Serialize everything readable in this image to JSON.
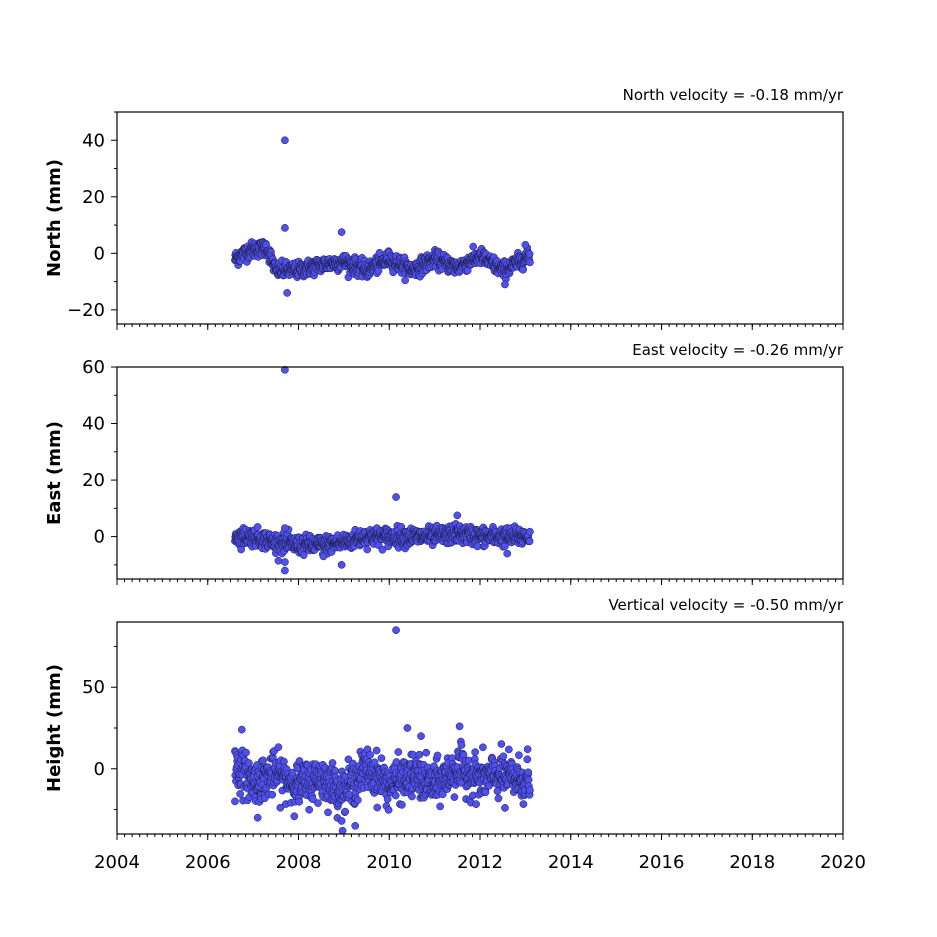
{
  "chart_data": {
    "type": "scatter",
    "x_axis": {
      "range": [
        2004,
        2020
      ],
      "major_ticks": [
        2004,
        2006,
        2008,
        2010,
        2012,
        2014,
        2016,
        2018,
        2020
      ],
      "tick_labels": [
        "2004",
        "2006",
        "2008",
        "2010",
        "2012",
        "2014",
        "2016",
        "2018",
        "2020"
      ],
      "minor_tick_step_years": 0.1667
    },
    "point_color": "#5050ee",
    "panels": [
      {
        "id": "north",
        "ylabel": "North (mm)",
        "velocity_label": "North velocity = -0.18 mm/yr",
        "ylim": [
          -25,
          50
        ],
        "yticks": [
          -20,
          0,
          20,
          40
        ],
        "ytick_labels": [
          "−20",
          "0",
          "20",
          "40"
        ],
        "segments": [
          {
            "x": 2006.6,
            "y": -2
          },
          {
            "x": 2006.9,
            "y": 1
          },
          {
            "x": 2007.3,
            "y": 2
          },
          {
            "x": 2007.5,
            "y": -6
          },
          {
            "x": 2008.0,
            "y": -6
          },
          {
            "x": 2008.5,
            "y": -4
          },
          {
            "x": 2009.0,
            "y": -3
          },
          {
            "x": 2009.5,
            "y": -6
          },
          {
            "x": 2010.0,
            "y": -2
          },
          {
            "x": 2010.5,
            "y": -6
          },
          {
            "x": 2011.0,
            "y": -2
          },
          {
            "x": 2011.5,
            "y": -5
          },
          {
            "x": 2012.0,
            "y": -1
          },
          {
            "x": 2012.5,
            "y": -6
          },
          {
            "x": 2013.1,
            "y": -1
          }
        ],
        "noise": 1.4,
        "outliers": [
          [
            2007.7,
            40
          ],
          [
            2007.7,
            9
          ],
          [
            2008.95,
            7.5
          ],
          [
            2012.55,
            -11
          ],
          [
            2007.75,
            -14
          ],
          [
            2013.0,
            3
          ]
        ]
      },
      {
        "id": "east",
        "ylabel": "East (mm)",
        "velocity_label": "East velocity = -0.26 mm/yr",
        "ylim": [
          -15,
          60
        ],
        "yticks": [
          0,
          20,
          40,
          60
        ],
        "ytick_labels": [
          "0",
          "20",
          "40",
          "60"
        ],
        "segments": [
          {
            "x": 2006.6,
            "y": 0
          },
          {
            "x": 2007.0,
            "y": 0
          },
          {
            "x": 2007.5,
            "y": -2
          },
          {
            "x": 2008.0,
            "y": -3
          },
          {
            "x": 2008.5,
            "y": -3
          },
          {
            "x": 2009.0,
            "y": -2
          },
          {
            "x": 2009.5,
            "y": 0
          },
          {
            "x": 2010.0,
            "y": 0
          },
          {
            "x": 2010.5,
            "y": 0
          },
          {
            "x": 2011.0,
            "y": 0
          },
          {
            "x": 2011.5,
            "y": 1
          },
          {
            "x": 2012.0,
            "y": 0
          },
          {
            "x": 2012.5,
            "y": 0
          },
          {
            "x": 2013.1,
            "y": 0
          }
        ],
        "noise": 1.6,
        "outliers": [
          [
            2007.7,
            59
          ],
          [
            2007.7,
            -12
          ],
          [
            2007.7,
            -9
          ],
          [
            2007.7,
            3
          ],
          [
            2008.95,
            -10
          ],
          [
            2010.15,
            14
          ],
          [
            2011.5,
            7.5
          ],
          [
            2012.6,
            -6
          ],
          [
            2008.55,
            -7
          ]
        ]
      },
      {
        "id": "height",
        "ylabel": "Height (mm)",
        "velocity_label": "Vertical velocity = -0.50 mm/yr",
        "ylim": [
          -40,
          90
        ],
        "yticks": [
          0,
          50
        ],
        "ytick_labels": [
          "0",
          "50"
        ],
        "segments": [
          {
            "x": 2006.6,
            "y": 2
          },
          {
            "x": 2007.0,
            "y": -8
          },
          {
            "x": 2007.5,
            "y": -3
          },
          {
            "x": 2008.0,
            "y": -10
          },
          {
            "x": 2008.5,
            "y": -6
          },
          {
            "x": 2009.0,
            "y": -14
          },
          {
            "x": 2009.5,
            "y": 0
          },
          {
            "x": 2010.0,
            "y": -10
          },
          {
            "x": 2010.5,
            "y": -4
          },
          {
            "x": 2011.0,
            "y": -10
          },
          {
            "x": 2011.5,
            "y": 0
          },
          {
            "x": 2012.0,
            "y": -6
          },
          {
            "x": 2012.5,
            "y": -4
          },
          {
            "x": 2013.1,
            "y": -8
          }
        ],
        "noise": 6.5,
        "outliers": [
          [
            2010.15,
            85
          ],
          [
            2010.4,
            25
          ],
          [
            2011.55,
            26
          ],
          [
            2006.75,
            24
          ],
          [
            2009.25,
            -35
          ],
          [
            2008.95,
            -32
          ],
          [
            2007.1,
            -30
          ],
          [
            2010.7,
            20
          ],
          [
            2012.55,
            -24
          ],
          [
            2013.05,
            12
          ],
          [
            2006.6,
            -20
          ]
        ]
      }
    ]
  }
}
